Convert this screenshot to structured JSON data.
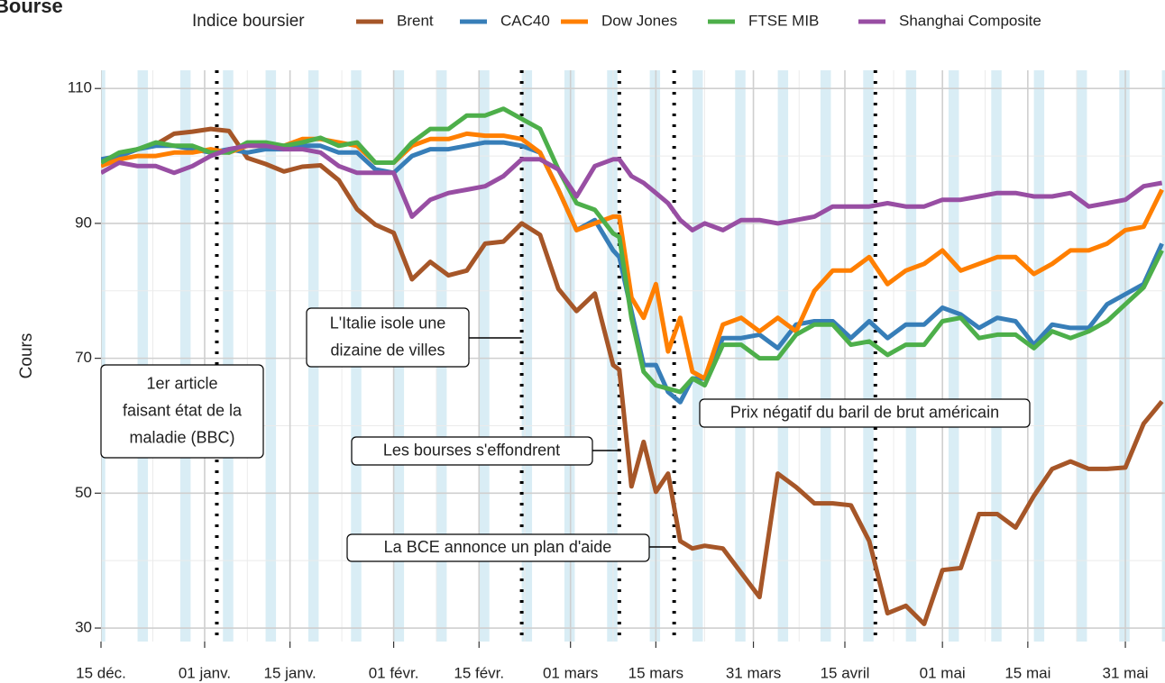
{
  "chart_data": {
    "type": "line",
    "title": "Bourse",
    "ylabel": "Cours",
    "legend_title": "Indice boursier",
    "legend": "top",
    "grid": true,
    "x": [
      0,
      3,
      6,
      9,
      12,
      15,
      18,
      21,
      24,
      27,
      30,
      33,
      36,
      39,
      42,
      45,
      48,
      51,
      54,
      57,
      60,
      63,
      66,
      69,
      72,
      75,
      78,
      81,
      84,
      85,
      87,
      89,
      91,
      93,
      95,
      97,
      99,
      102,
      105,
      108,
      111,
      114,
      117,
      120,
      123,
      126,
      129,
      132,
      135,
      138,
      141,
      144,
      147,
      150,
      153,
      156,
      159,
      162,
      165,
      168,
      171,
      174
    ],
    "xlim": [
      0,
      174.5
    ],
    "xticks": [
      {
        "value": 0,
        "label": "15 déc."
      },
      {
        "value": 17,
        "label": "01 janv."
      },
      {
        "value": 31,
        "label": "15 janv."
      },
      {
        "value": 48,
        "label": "01 févr."
      },
      {
        "value": 62,
        "label": "15 févr."
      },
      {
        "value": 77,
        "label": "01 mars"
      },
      {
        "value": 91,
        "label": "15 mars"
      },
      {
        "value": 107,
        "label": "31 mars"
      },
      {
        "value": 122,
        "label": "15 avril"
      },
      {
        "value": 138,
        "label": "01 mai"
      },
      {
        "value": 152,
        "label": "15 mai"
      },
      {
        "value": 168,
        "label": "31 mai"
      }
    ],
    "ylim": [
      28,
      112.7
    ],
    "yticks": [
      30,
      50,
      70,
      90,
      110
    ],
    "weekends": [
      -1,
      6,
      13,
      20,
      27,
      34,
      41,
      48,
      55,
      62,
      69,
      76,
      83,
      90,
      97,
      104,
      111,
      118,
      125,
      132,
      139,
      146,
      153,
      160,
      167,
      174
    ],
    "weekend_color": "#d9edf5",
    "series": [
      {
        "name": "Brent",
        "color": "#a65628",
        "values": [
          99.3,
          100,
          101,
          101.7,
          103.3,
          103.6,
          104,
          103.7,
          99.7,
          98.8,
          97.7,
          98.4,
          98.6,
          96.4,
          92.1,
          89.8,
          88.6,
          81.7,
          84.3,
          82.3,
          83,
          87,
          87.3,
          90,
          88.3,
          80.3,
          77,
          79.6,
          69,
          68.3,
          51,
          57.6,
          50.2,
          52.9,
          42.9,
          41.8,
          42.2,
          41.8,
          38.2,
          34.6,
          52.9,
          50.9,
          48.5,
          48.5,
          48.2,
          42.9,
          32.2,
          33.3,
          30.6,
          38.6,
          38.9,
          46.9,
          46.9,
          44.9,
          49.6,
          53.6,
          54.7,
          53.6,
          53.6,
          53.8,
          60.3,
          63.6
        ]
      },
      {
        "name": "CAC40",
        "color": "#377eb8",
        "values": [
          99.5,
          100,
          101,
          101.5,
          101.5,
          101,
          100.5,
          101,
          100.5,
          101,
          101,
          101.5,
          101.5,
          100.5,
          100.5,
          98,
          97.5,
          100,
          101,
          101,
          101.5,
          102,
          102,
          101.5,
          100.5,
          95,
          89,
          90.5,
          86,
          85,
          77,
          69,
          69,
          65,
          63.5,
          67,
          67,
          73,
          73,
          73.5,
          71.5,
          75,
          75.5,
          75.5,
          73,
          75.5,
          73,
          75,
          75,
          77.5,
          76.5,
          74.5,
          76,
          75.5,
          72,
          75,
          74.5,
          74.5,
          78,
          79.5,
          81,
          87
        ]
      },
      {
        "name": "Dow Jones",
        "color": "#ff7f00",
        "values": [
          98.5,
          99.5,
          100,
          100,
          100.5,
          100.5,
          101,
          100.5,
          101.5,
          101.5,
          101.5,
          102.5,
          102.5,
          102,
          101.5,
          99,
          99,
          101.5,
          102.5,
          102.5,
          103.3,
          103,
          103,
          102.5,
          100.5,
          95,
          89,
          90,
          91,
          91,
          79,
          76,
          81,
          71,
          76,
          68,
          67,
          75,
          76,
          74,
          76,
          74,
          80,
          83,
          83,
          85,
          81,
          83,
          84,
          86,
          83,
          84,
          85,
          85,
          82.5,
          84,
          86,
          86,
          87,
          89,
          89.5,
          95
        ]
      },
      {
        "name": "FTSE MIB",
        "color": "#4daf4a",
        "values": [
          99,
          100.5,
          101,
          102,
          101.5,
          101.5,
          100.5,
          100.5,
          102,
          102,
          101.5,
          102,
          102.7,
          101.5,
          102,
          99,
          99,
          102,
          104,
          104,
          106,
          106,
          107,
          105.5,
          104,
          98,
          93,
          92,
          88.5,
          88,
          76,
          68,
          66,
          65.5,
          65,
          67,
          66,
          72,
          72,
          70,
          70,
          73.5,
          75,
          75,
          72,
          72.5,
          70.5,
          72,
          72,
          75.5,
          76,
          73,
          73.5,
          73.5,
          71.5,
          74,
          73,
          74,
          75.5,
          78,
          80.5,
          86
        ]
      },
      {
        "name": "Shanghai Composite",
        "color": "#984ea3",
        "values": [
          97.5,
          99,
          98.5,
          98.5,
          97.5,
          98.5,
          100,
          101,
          101.5,
          101.5,
          101,
          101,
          100.5,
          98.5,
          97.5,
          97.5,
          97.5,
          91,
          93.5,
          94.5,
          95,
          95.5,
          97,
          99.5,
          99.5,
          98,
          94,
          98.5,
          99.5,
          99.5,
          97,
          96,
          94.5,
          93,
          90.5,
          89,
          90,
          89,
          90.5,
          90.5,
          90,
          90.5,
          91,
          92.5,
          92.5,
          92.5,
          93,
          92.5,
          92.5,
          93.5,
          93.5,
          94,
          94.5,
          94.5,
          94,
          94,
          94.5,
          92.5,
          93,
          93.5,
          95.5,
          96
        ]
      }
    ],
    "events": [
      {
        "x": 19,
        "label": [
          "1er article",
          "faisant état de la",
          "maladie (BBC)"
        ]
      },
      {
        "x": 69,
        "label": [
          "L'Italie isole une",
          "dizaine de villes"
        ]
      },
      {
        "x": 85,
        "label": [
          "Les bourses s'effondrent"
        ]
      },
      {
        "x": 94,
        "label": [
          "La BCE annonce un plan d'aide"
        ]
      },
      {
        "x": 127,
        "label": [
          "Prix négatif du baril de brut américain"
        ]
      }
    ]
  }
}
